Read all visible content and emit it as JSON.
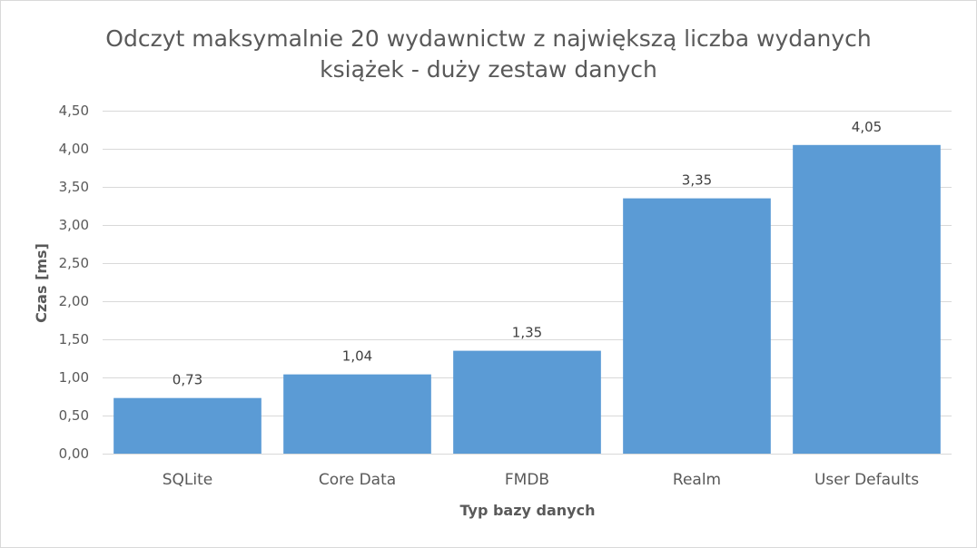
{
  "chart_data": {
    "type": "bar",
    "title_lines": [
      "Odczyt maksymalnie 20 wydawnictw z największą liczba wydanych",
      "książek - duży zestaw danych"
    ],
    "xlabel": "Typ bazy danych",
    "ylabel": "Czas [ms]",
    "categories": [
      "SQLite",
      "Core Data",
      "FMDB",
      "Realm",
      "User Defaults"
    ],
    "values": [
      0.73,
      1.04,
      1.35,
      3.35,
      4.05
    ],
    "value_labels": [
      "0,73",
      "1,04",
      "1,35",
      "3,35",
      "4,05"
    ],
    "ylim": [
      0,
      4.5
    ],
    "yticks": [
      0,
      0.5,
      1.0,
      1.5,
      2.0,
      2.5,
      3.0,
      3.5,
      4.0,
      4.5
    ],
    "ytick_labels": [
      "0,00",
      "0,50",
      "1,00",
      "1,50",
      "2,00",
      "2,50",
      "3,00",
      "3,50",
      "4,00",
      "4,50"
    ],
    "grid": true,
    "legend": "none",
    "bar_color": "#5b9bd5",
    "grid_color": "#d9d9d9",
    "text_color": "#595959"
  }
}
